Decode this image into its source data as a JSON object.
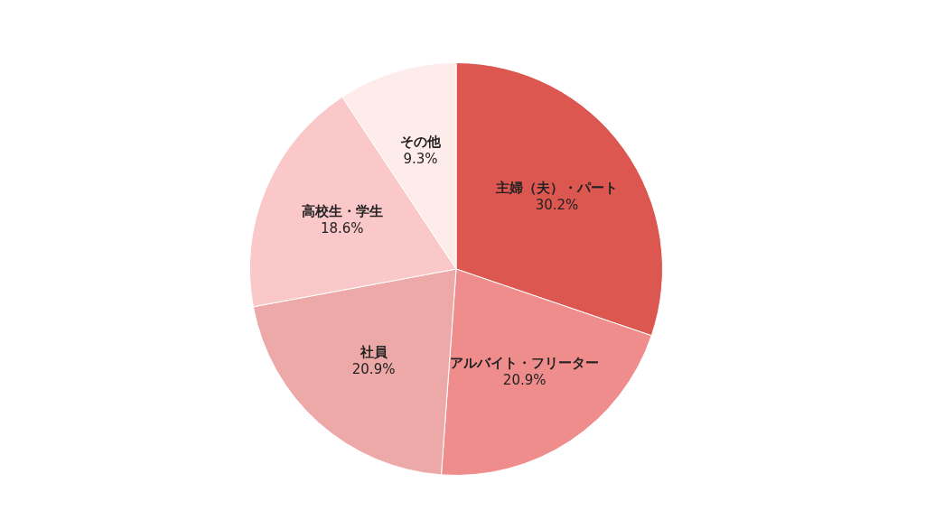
{
  "chart_data": {
    "type": "pie",
    "categories": [
      "主婦（夫）・パート",
      "アルバイト・フリーター",
      "社員",
      "高校生・学生",
      "その他"
    ],
    "values": [
      30.2,
      20.9,
      20.9,
      18.6,
      9.3
    ],
    "colors": [
      "#dc5750",
      "#ef8d8c",
      "#eda8a8",
      "#fbc8c9",
      "#feeceb"
    ],
    "value_labels": [
      "30.2%",
      "20.9%",
      "20.9%",
      "18.6%",
      "9.3%"
    ]
  }
}
